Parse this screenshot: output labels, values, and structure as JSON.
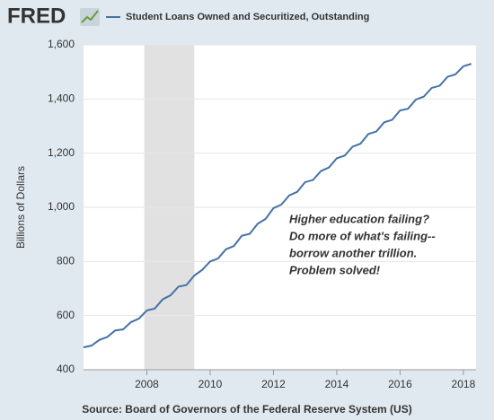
{
  "chart_data": {
    "type": "line",
    "brand": "FRED",
    "ylabel": "Billions of Dollars",
    "source": "Source: Board of Governors of the Federal Reserve System (US)",
    "annotation": [
      "Higher education failing?",
      "Do more of what's failing--",
      "borrow another trillion.",
      "Problem solved!"
    ],
    "x": [
      2006,
      2006.25,
      2006.5,
      2006.75,
      2007,
      2007.25,
      2007.5,
      2007.75,
      2008,
      2008.25,
      2008.5,
      2008.75,
      2009,
      2009.25,
      2009.5,
      2009.75,
      2010,
      2010.25,
      2010.5,
      2010.75,
      2011,
      2011.25,
      2011.5,
      2011.75,
      2012,
      2012.25,
      2012.5,
      2012.75,
      2013,
      2013.25,
      2013.5,
      2013.75,
      2014,
      2014.25,
      2014.5,
      2014.75,
      2015,
      2015.25,
      2015.5,
      2015.75,
      2016,
      2016.25,
      2016.5,
      2016.75,
      2017,
      2017.25,
      2017.5,
      2017.75,
      2018,
      2018.25
    ],
    "series": [
      {
        "name": "Student Loans Owned and Securitized, Outstanding",
        "color": "#4572a7",
        "values": [
          483,
          489,
          510,
          521,
          545,
          549,
          576,
          589,
          619,
          626,
          660,
          675,
          707,
          713,
          748,
          769,
          800,
          811,
          845,
          857,
          895,
          902,
          939,
          957,
          997,
          1010,
          1044,
          1057,
          1093,
          1101,
          1134,
          1147,
          1181,
          1191,
          1224,
          1235,
          1271,
          1280,
          1314,
          1323,
          1358,
          1364,
          1398,
          1409,
          1441,
          1449,
          1482,
          1491,
          1521,
          1530
        ]
      }
    ],
    "recessions": [
      [
        2007.92,
        2009.5
      ]
    ],
    "xlim": [
      2006,
      2018.4
    ],
    "xticks": [
      2008,
      2010,
      2012,
      2014,
      2016,
      2018
    ],
    "ylim": [
      400,
      1600
    ],
    "yticks": [
      400,
      600,
      800,
      {
        "value": 1000,
        "label": "1,000"
      },
      {
        "value": 1200,
        "label": "1,200"
      },
      {
        "value": 1400,
        "label": "1,400"
      },
      {
        "value": 1600,
        "label": "1,600"
      }
    ],
    "grid": true
  }
}
